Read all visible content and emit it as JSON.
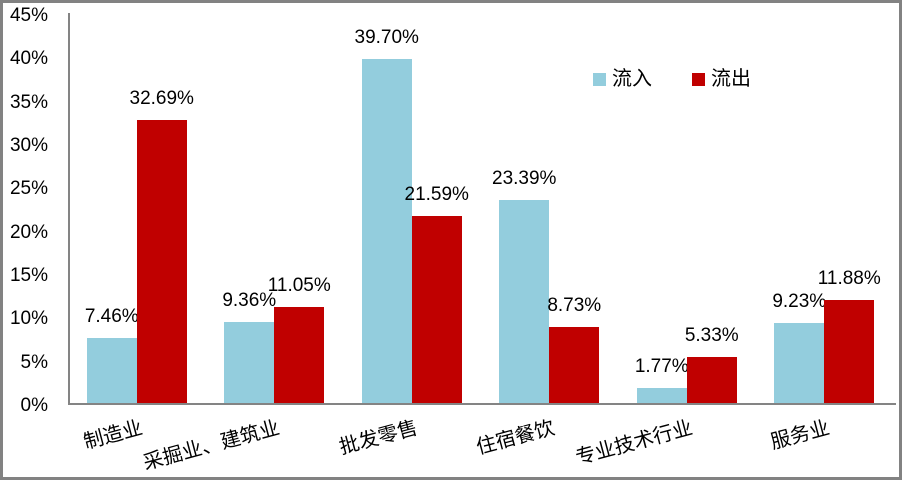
{
  "chart_data": {
    "type": "bar",
    "title": "",
    "categories": [
      "制造业",
      "采掘业、建筑业",
      "批发零售",
      "住宿餐饮",
      "专业技术行业",
      "服务业"
    ],
    "series": [
      {
        "key": "inflow",
        "name": "流入",
        "color": "#93CDDD",
        "values": [
          7.46,
          9.36,
          39.7,
          23.39,
          1.77,
          9.23
        ],
        "labels": [
          "7.46%",
          "9.36%",
          "39.70%",
          "23.39%",
          "1.77%",
          "9.23%"
        ]
      },
      {
        "key": "outflow",
        "name": "流出",
        "color": "#C00000",
        "values": [
          32.69,
          11.05,
          21.59,
          8.73,
          5.33,
          11.88
        ],
        "labels": [
          "32.69%",
          "11.05%",
          "21.59%",
          "8.73%",
          "5.33%",
          "11.88%"
        ]
      }
    ],
    "y_axis": {
      "min": 0,
      "max": 45,
      "step": 5,
      "unit": "%",
      "tick_labels": [
        "0%",
        "5%",
        "10%",
        "15%",
        "20%",
        "25%",
        "30%",
        "35%",
        "40%",
        "45%"
      ]
    },
    "legend": {
      "position": "top-right",
      "entries": [
        {
          "label": "流入",
          "color": "#93CDDD"
        },
        {
          "label": "流出",
          "color": "#C00000"
        }
      ]
    },
    "grid": false,
    "colors": {
      "axis": "#848484",
      "text": "#000000",
      "frame_border": "#828282",
      "background": "#FFFFFF"
    }
  }
}
